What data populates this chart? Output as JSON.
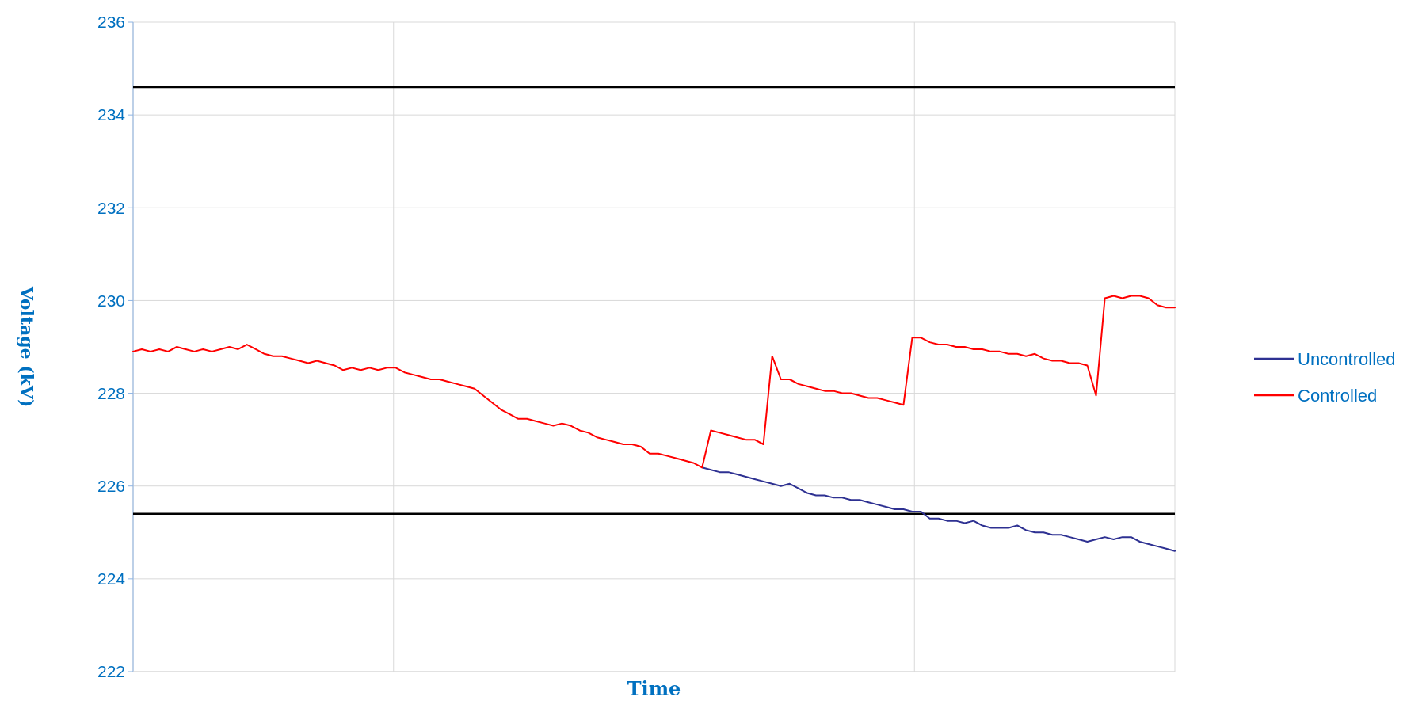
{
  "chart_data": {
    "type": "line",
    "xlabel": "Time",
    "ylabel": "Voltage (kV)",
    "categories": [
      null,
      null,
      null,
      null,
      null,
      null,
      null,
      null,
      null,
      null,
      null,
      null,
      null,
      null,
      null,
      null,
      null,
      null,
      null,
      null,
      null,
      null,
      null,
      null,
      null,
      null,
      null,
      null,
      null,
      null,
      null,
      null,
      null,
      null,
      null,
      null,
      null,
      null,
      null,
      null,
      null,
      null,
      null,
      null,
      null,
      null,
      null,
      null,
      null,
      null,
      null,
      null,
      null,
      null,
      null,
      null,
      null,
      null,
      null,
      null,
      null,
      null,
      null,
      null,
      null,
      null,
      null,
      null,
      null,
      null,
      null,
      null,
      null,
      null,
      null,
      null,
      null,
      null,
      null,
      null,
      null,
      null,
      null,
      null,
      null,
      null,
      null,
      null,
      null,
      null,
      null,
      null,
      null,
      null,
      null,
      null,
      null,
      null,
      null,
      null,
      null,
      null,
      null,
      null,
      null,
      null,
      null,
      null,
      null,
      null,
      null,
      null,
      null,
      null,
      null,
      null,
      null,
      null,
      null,
      null
    ],
    "series": [
      {
        "name": "Uncontrolled",
        "color": "#2e3192",
        "values": [
          null,
          null,
          null,
          null,
          null,
          null,
          null,
          null,
          null,
          null,
          null,
          null,
          null,
          null,
          null,
          null,
          null,
          null,
          null,
          null,
          null,
          null,
          null,
          null,
          null,
          null,
          null,
          null,
          null,
          null,
          null,
          null,
          null,
          null,
          null,
          null,
          null,
          null,
          null,
          null,
          null,
          null,
          null,
          null,
          null,
          null,
          null,
          null,
          null,
          null,
          null,
          null,
          null,
          null,
          null,
          null,
          null,
          null,
          null,
          null,
          null,
          null,
          null,
          null,
          null,
          226.4,
          226.35,
          226.3,
          226.3,
          226.25,
          226.2,
          226.15,
          226.1,
          226.05,
          226.0,
          226.05,
          225.95,
          225.85,
          225.8,
          225.8,
          225.75,
          225.75,
          225.7,
          225.7,
          225.65,
          225.6,
          225.55,
          225.5,
          225.5,
          225.45,
          225.45,
          225.3,
          225.3,
          225.25,
          225.25,
          225.2,
          225.25,
          225.15,
          225.1,
          225.1,
          225.1,
          225.15,
          225.05,
          225.0,
          225.0,
          224.95,
          224.95,
          224.9,
          224.85,
          224.8,
          224.85,
          224.9,
          224.85,
          224.9,
          224.9,
          224.8,
          224.75,
          224.7,
          224.65,
          224.6
        ]
      },
      {
        "name": "Controlled",
        "color": "#ff0000",
        "values": [
          228.9,
          228.95,
          228.9,
          228.95,
          228.9,
          229.0,
          228.95,
          228.9,
          228.95,
          228.9,
          228.95,
          229.0,
          228.95,
          229.05,
          228.95,
          228.85,
          228.8,
          228.8,
          228.75,
          228.7,
          228.65,
          228.7,
          228.65,
          228.6,
          228.5,
          228.55,
          228.5,
          228.55,
          228.5,
          228.55,
          228.55,
          228.45,
          228.4,
          228.35,
          228.3,
          228.3,
          228.25,
          228.2,
          228.15,
          228.1,
          227.95,
          227.8,
          227.65,
          227.55,
          227.45,
          227.45,
          227.4,
          227.35,
          227.3,
          227.35,
          227.3,
          227.2,
          227.15,
          227.05,
          227.0,
          226.95,
          226.9,
          226.9,
          226.85,
          226.7,
          226.7,
          226.65,
          226.6,
          226.55,
          226.5,
          226.4,
          227.2,
          227.15,
          227.1,
          227.05,
          227.0,
          227.0,
          226.9,
          228.8,
          228.3,
          228.3,
          228.2,
          228.15,
          228.1,
          228.05,
          228.05,
          228.0,
          228.0,
          227.95,
          227.9,
          227.9,
          227.85,
          227.8,
          227.75,
          229.2,
          229.2,
          229.1,
          229.05,
          229.05,
          229.0,
          229.0,
          228.95,
          228.95,
          228.9,
          228.9,
          228.85,
          228.85,
          228.8,
          228.85,
          228.75,
          228.7,
          228.7,
          228.65,
          228.65,
          228.6,
          227.95,
          230.05,
          230.1,
          230.05,
          230.1,
          230.1,
          230.05,
          229.9,
          229.85,
          229.85
        ]
      }
    ],
    "ylim": [
      222,
      236
    ],
    "yticks": [
      222,
      224,
      226,
      228,
      230,
      232,
      234,
      236
    ],
    "ref_lines": [
      {
        "axis": "y",
        "value": 234.6,
        "color": "#000000"
      },
      {
        "axis": "y",
        "value": 225.4,
        "color": "#000000"
      }
    ],
    "grid": true,
    "legend": "right",
    "tick_labels": "y"
  }
}
